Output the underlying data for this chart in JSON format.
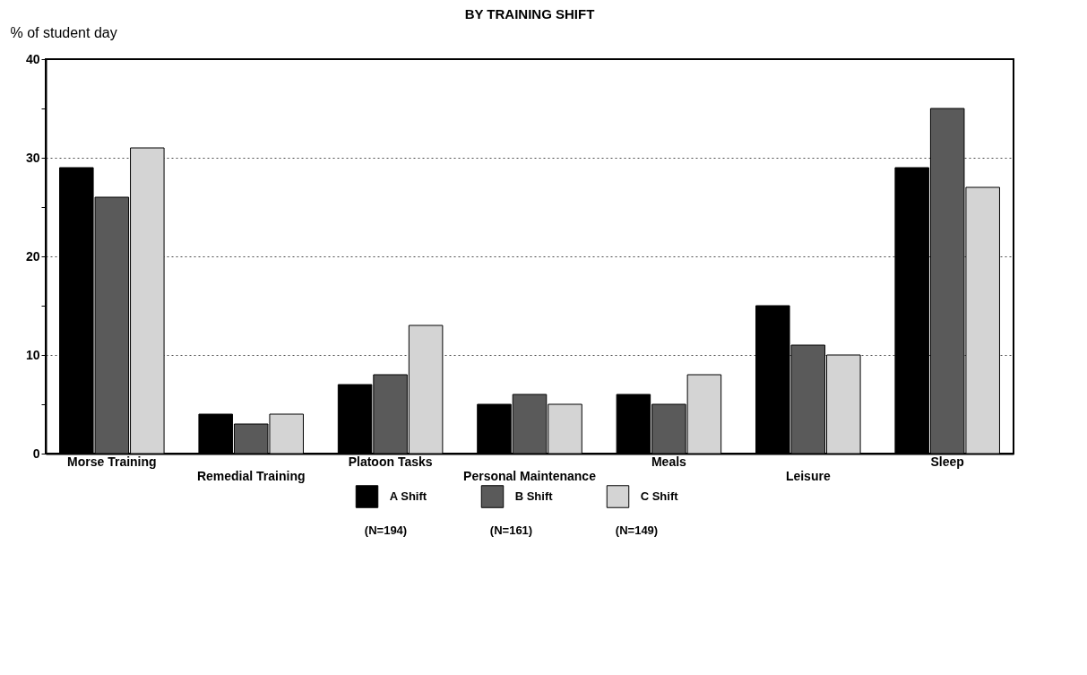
{
  "chart_data": {
    "type": "bar",
    "title": "BY TRAINING SHIFT",
    "ylabel": "% of student day",
    "categories": [
      "Morse Training",
      "Remedial Training",
      "Platoon Tasks",
      "Personal Maintenance",
      "Meals",
      "Leisure",
      "Sleep"
    ],
    "series": [
      {
        "name": "A Shift",
        "color": "#000000",
        "values": [
          29,
          4,
          7,
          5,
          6,
          15,
          29
        ]
      },
      {
        "name": "B Shift",
        "color": "#5a5a5a",
        "values": [
          26,
          3,
          8,
          6,
          5,
          11,
          35
        ]
      },
      {
        "name": "C Shift",
        "color": "#d4d4d4",
        "values": [
          31,
          4,
          13,
          5,
          8,
          10,
          27
        ]
      }
    ],
    "ylim": [
      0,
      40
    ],
    "yticks": [
      0,
      {
        "value": 5,
        "label": null
      },
      10,
      {
        "value": 15,
        "label": null
      },
      20,
      {
        "value": 25,
        "label": null
      },
      30,
      {
        "value": 35,
        "label": null
      },
      40
    ],
    "grid": "y",
    "legend": "bottom",
    "annotations": [
      "(N=194)",
      "(N=161)",
      "(N=149)"
    ]
  }
}
